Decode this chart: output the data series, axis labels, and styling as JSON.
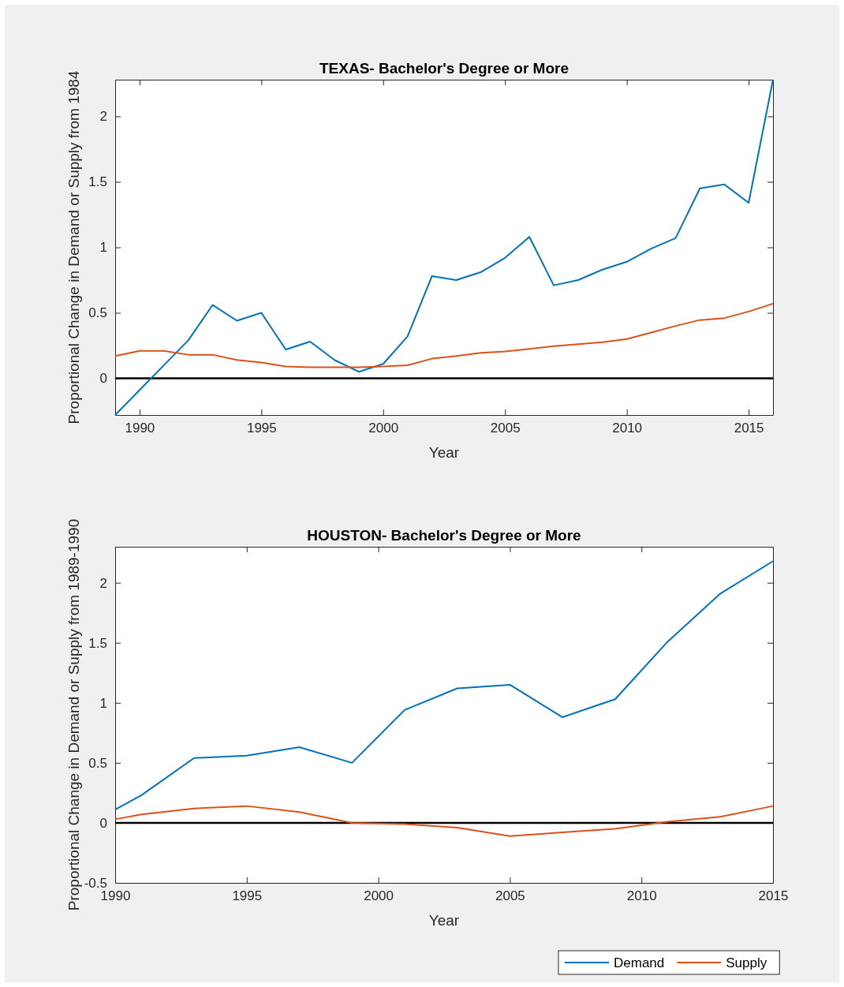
{
  "chart_data": [
    {
      "type": "line",
      "title": "TEXAS- Bachelor's Degree or More",
      "xlabel": "Year",
      "ylabel": "Proportional Change in Demand or Supply from 1984",
      "x": [
        1989,
        1990,
        1991,
        1992,
        1993,
        1994,
        1995,
        1996,
        1997,
        1998,
        1999,
        2000,
        2001,
        2002,
        2003,
        2004,
        2005,
        2006,
        2007,
        2008,
        2009,
        2010,
        2011,
        2012,
        2013,
        2014,
        2015,
        2016
      ],
      "series": [
        {
          "color": "#0072bd",
          "values": [
            -0.28,
            -0.09,
            0.1,
            0.29,
            0.56,
            0.44,
            0.5,
            0.22,
            0.28,
            0.14,
            0.05,
            0.11,
            0.32,
            0.78,
            0.75,
            0.81,
            0.92,
            1.08,
            0.71,
            0.75,
            0.83,
            0.89,
            0.99,
            1.07,
            1.45,
            1.48,
            1.34,
            2.28
          ]
        },
        {
          "color": "#d95319",
          "values": [
            0.17,
            0.21,
            0.21,
            0.18,
            0.18,
            0.14,
            0.12,
            0.09,
            0.085,
            0.085,
            0.085,
            0.09,
            0.1,
            0.15,
            0.17,
            0.195,
            0.205,
            0.225,
            0.245,
            0.26,
            0.275,
            0.3,
            0.35,
            0.4,
            0.445,
            0.46,
            0.51,
            0.57
          ]
        }
      ],
      "xlim": [
        1989,
        2016
      ],
      "ylim": [
        -0.28,
        2.28
      ],
      "xticks": [
        1990,
        1995,
        2000,
        2005,
        2010,
        2015
      ],
      "yticks": [
        0,
        0.5,
        1,
        1.5,
        2
      ],
      "ref_lines": [
        {
          "axis": "y",
          "value": 0,
          "color": "#000000"
        }
      ]
    },
    {
      "type": "line",
      "title": "HOUSTON- Bachelor's Degree or More",
      "xlabel": "Year",
      "ylabel": "Proportional Change in Demand or Supply from 1989-1990",
      "x": [
        1990,
        1991,
        1993,
        1995,
        1997,
        1999,
        2001,
        2003,
        2005,
        2007,
        2009,
        2011,
        2013,
        2015
      ],
      "series": [
        {
          "name": "Demand",
          "color": "#0072bd",
          "values": [
            0.11,
            0.23,
            0.54,
            0.56,
            0.63,
            0.5,
            0.94,
            1.12,
            1.15,
            0.88,
            1.03,
            1.51,
            1.91,
            2.18
          ]
        },
        {
          "name": "Supply",
          "color": "#d95319",
          "values": [
            0.03,
            0.07,
            0.12,
            0.14,
            0.09,
            0,
            -0.01,
            -0.04,
            -0.11,
            -0.08,
            -0.05,
            0.01,
            0.05,
            0.14
          ]
        }
      ],
      "xlim": [
        1990,
        2015
      ],
      "ylim": [
        -0.5,
        2.3
      ],
      "xticks": [
        1990,
        1995,
        2000,
        2005,
        2010,
        2015
      ],
      "yticks": [
        -0.5,
        0,
        0.5,
        1,
        1.5,
        2
      ],
      "ref_lines": [
        {
          "axis": "y",
          "value": 0,
          "color": "#000000"
        }
      ],
      "legend": "bottom"
    }
  ]
}
